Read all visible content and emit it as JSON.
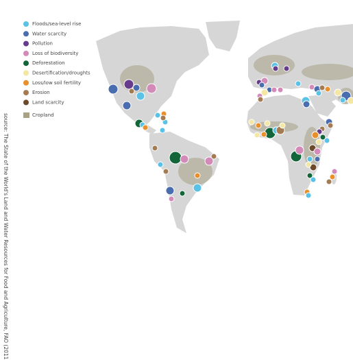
{
  "legend": [
    {
      "name": "Floods/sea-level rise",
      "color": "#5bc2e7"
    },
    {
      "name": "Water scarcity",
      "color": "#4a6db0"
    },
    {
      "name": "Pollution",
      "color": "#673c8c"
    },
    {
      "name": "Loss of biodiversity",
      "color": "#d38ab9"
    },
    {
      "name": "Deforestation",
      "color": "#12663a"
    },
    {
      "name": "Desertification/droughts",
      "color": "#f4e7a3"
    },
    {
      "name": "Loss/low soil fertility",
      "color": "#e98f2b"
    },
    {
      "name": "Erosion",
      "color": "#a47b53"
    },
    {
      "name": "Land scarcity",
      "color": "#6a4a2a"
    }
  ],
  "cropland": {
    "name": "Cropland",
    "color": "#a8a287"
  },
  "source": "source: The State of the World's Land and Water Resources for Food and Agriculture, FAO (2011)."
}
